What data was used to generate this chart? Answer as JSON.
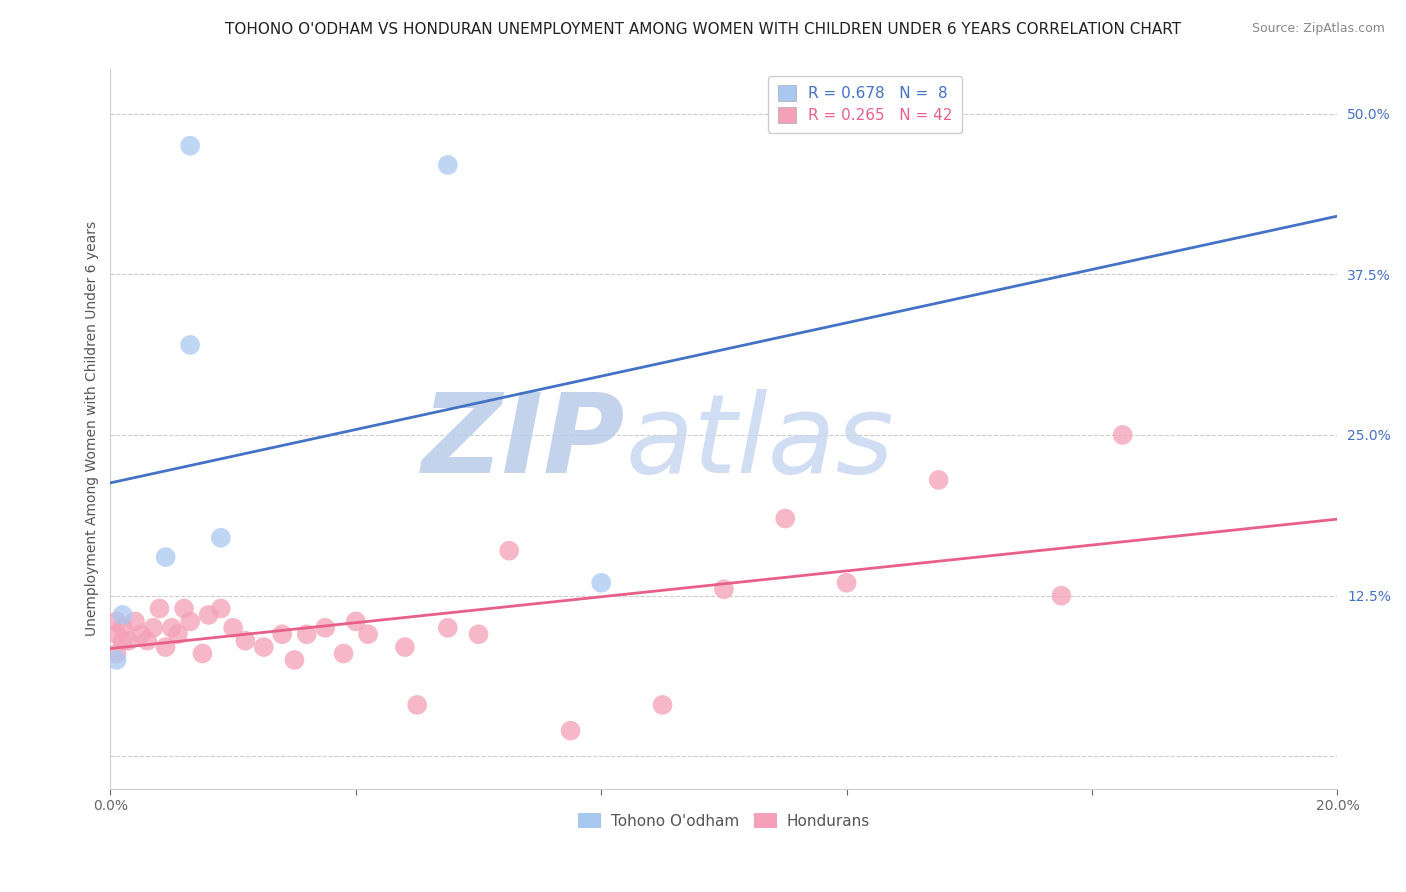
{
  "title": "TOHONO O'ODHAM VS HONDURAN UNEMPLOYMENT AMONG WOMEN WITH CHILDREN UNDER 6 YEARS CORRELATION CHART",
  "source": "Source: ZipAtlas.com",
  "ylabel": "Unemployment Among Women with Children Under 6 years",
  "xlim": [
    0.0,
    0.2
  ],
  "ylim": [
    -0.025,
    0.535
  ],
  "legend_r1": "R = 0.678",
  "legend_n1": "N =  8",
  "legend_r2": "R = 0.265",
  "legend_n2": "N = 42",
  "color_tohono": "#A8C8F0",
  "color_honduran": "#F4A0B8",
  "line_color_tohono": "#4472C4",
  "line_color_honduran": "#E8608A",
  "watermark_zip": "ZIP",
  "watermark_atlas": "atlas",
  "tohono_x": [
    0.001,
    0.002,
    0.009,
    0.013,
    0.013,
    0.018,
    0.055,
    0.08
  ],
  "tohono_y": [
    0.075,
    0.11,
    0.155,
    0.475,
    0.32,
    0.17,
    0.46,
    0.135
  ],
  "honduran_x": [
    0.001,
    0.001,
    0.001,
    0.002,
    0.002,
    0.003,
    0.004,
    0.005,
    0.006,
    0.007,
    0.008,
    0.009,
    0.01,
    0.011,
    0.012,
    0.013,
    0.015,
    0.016,
    0.018,
    0.02,
    0.022,
    0.025,
    0.028,
    0.03,
    0.032,
    0.035,
    0.038,
    0.04,
    0.042,
    0.048,
    0.05,
    0.055,
    0.06,
    0.065,
    0.075,
    0.09,
    0.1,
    0.11,
    0.12,
    0.135,
    0.155,
    0.165
  ],
  "honduran_y": [
    0.08,
    0.095,
    0.105,
    0.09,
    0.1,
    0.09,
    0.105,
    0.095,
    0.09,
    0.1,
    0.115,
    0.085,
    0.1,
    0.095,
    0.115,
    0.105,
    0.08,
    0.11,
    0.115,
    0.1,
    0.09,
    0.085,
    0.095,
    0.075,
    0.095,
    0.1,
    0.08,
    0.105,
    0.095,
    0.085,
    0.04,
    0.1,
    0.095,
    0.16,
    0.02,
    0.04,
    0.13,
    0.185,
    0.135,
    0.215,
    0.125,
    0.25
  ],
  "background_color": "#FFFFFF",
  "grid_color": "#CCCCCC",
  "title_fontsize": 11,
  "axis_label_fontsize": 10,
  "tick_fontsize": 10,
  "tick_color_right": "#4472C4",
  "watermark_color_zip": "#B8CCE8",
  "watermark_color_atlas": "#C8D8F0"
}
